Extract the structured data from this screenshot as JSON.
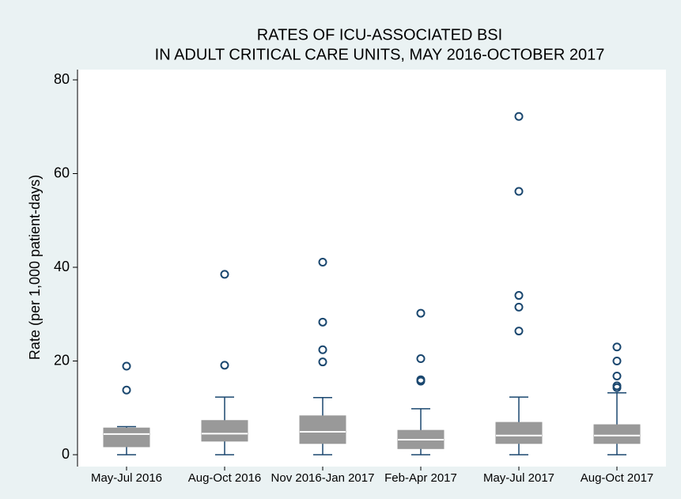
{
  "chart_data": {
    "type": "box",
    "title": [
      "RATES OF ICU-ASSOCIATED BSI",
      "IN ADULT CRITICAL CARE UNITS, MAY 2016-OCTOBER 2017"
    ],
    "y_label": "Rate (per 1,000 patient-days)",
    "categories": [
      "May-Jul 2016",
      "Aug-Oct 2016",
      "Nov 2016-Jan 2017",
      "Feb-Apr 2017",
      "May-Jul 2017",
      "Aug-Oct 2017"
    ],
    "boxes": [
      {
        "whisker_low": 0,
        "q1": 1.7,
        "median": 4.4,
        "q3": 5.7,
        "whisker_high": 6.0,
        "outliers": [
          18.9,
          13.8
        ]
      },
      {
        "whisker_low": 0,
        "q1": 2.9,
        "median": 4.5,
        "q3": 7.3,
        "whisker_high": 12.3,
        "outliers": [
          38.5,
          19.1
        ]
      },
      {
        "whisker_low": 0,
        "q1": 2.4,
        "median": 4.9,
        "q3": 8.3,
        "whisker_high": 12.2,
        "outliers": [
          41.1,
          28.3,
          22.4,
          19.8
        ]
      },
      {
        "whisker_low": 0,
        "q1": 1.3,
        "median": 3.2,
        "q3": 5.2,
        "whisker_high": 9.8,
        "outliers": [
          30.2,
          20.5,
          16.0,
          15.7
        ]
      },
      {
        "whisker_low": 0,
        "q1": 2.4,
        "median": 4.1,
        "q3": 6.9,
        "whisker_high": 12.3,
        "outliers": [
          72.2,
          56.2,
          34.0,
          31.5,
          26.4
        ]
      },
      {
        "whisker_low": 0,
        "q1": 2.4,
        "median": 4.1,
        "q3": 6.4,
        "whisker_high": 13.2,
        "outliers": [
          23.0,
          20.0,
          16.8,
          14.7,
          14.3
        ]
      }
    ],
    "box_color": "#999999",
    "line_color": "#1a476f",
    "ylim": [
      0,
      80
    ],
    "yticks": [
      0,
      20,
      40,
      60,
      80
    ]
  }
}
